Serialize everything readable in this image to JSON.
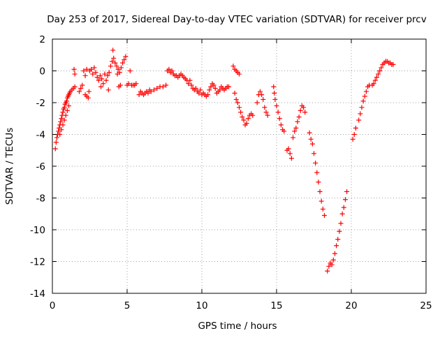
{
  "chart_data": {
    "type": "scatter",
    "title": "Day 253 of 2017, Sidereal Day-to-day VTEC variation (SDTVAR) for receiver prcv",
    "xlabel": "GPS time / hours",
    "ylabel": "SDTVAR / TECUs",
    "xlim": [
      0,
      25
    ],
    "ylim": [
      -14,
      2
    ],
    "xticks": [
      0,
      5,
      10,
      15,
      20,
      25
    ],
    "yticks": [
      -14,
      -12,
      -10,
      -8,
      -6,
      -4,
      -2,
      0,
      2
    ],
    "grid": true,
    "marker": "+",
    "color": "#ff0000",
    "series": [
      {
        "name": "SDTVAR",
        "points": [
          [
            0.2,
            -4.9
          ],
          [
            0.25,
            -4.5
          ],
          [
            0.3,
            -4.2
          ],
          [
            0.35,
            -4.0
          ],
          [
            0.4,
            -3.8
          ],
          [
            0.45,
            -3.6
          ],
          [
            0.5,
            -3.4
          ],
          [
            0.55,
            -3.2
          ],
          [
            0.6,
            -3.0
          ],
          [
            0.65,
            -2.8
          ],
          [
            0.7,
            -2.6
          ],
          [
            0.75,
            -2.4
          ],
          [
            0.8,
            -2.3
          ],
          [
            0.85,
            -2.1
          ],
          [
            0.9,
            -2.0
          ],
          [
            0.95,
            -1.9
          ],
          [
            1.0,
            -1.7
          ],
          [
            1.05,
            -1.6
          ],
          [
            1.1,
            -1.5
          ],
          [
            1.15,
            -1.4
          ],
          [
            1.2,
            -1.3
          ],
          [
            1.3,
            -1.2
          ],
          [
            1.4,
            -1.1
          ],
          [
            1.5,
            -1.0
          ],
          [
            0.5,
            -4.0
          ],
          [
            0.6,
            -3.7
          ],
          [
            0.7,
            -3.4
          ],
          [
            0.8,
            -3.1
          ],
          [
            0.9,
            -2.8
          ],
          [
            1.0,
            -2.5
          ],
          [
            1.1,
            -2.2
          ],
          [
            1.45,
            0.1
          ],
          [
            1.5,
            -0.2
          ],
          [
            1.8,
            -1.3
          ],
          [
            1.9,
            -1.1
          ],
          [
            2.0,
            -0.9
          ],
          [
            2.1,
            0.0
          ],
          [
            2.2,
            -0.3
          ],
          [
            2.3,
            0.1
          ],
          [
            2.2,
            -1.5
          ],
          [
            2.3,
            -1.6
          ],
          [
            2.4,
            -1.7
          ],
          [
            2.45,
            -1.3
          ],
          [
            2.5,
            0.0
          ],
          [
            2.6,
            0.1
          ],
          [
            2.7,
            -0.2
          ],
          [
            2.8,
            0.2
          ],
          [
            2.9,
            -0.1
          ],
          [
            3.0,
            -0.4
          ],
          [
            3.1,
            -0.6
          ],
          [
            3.2,
            -0.3
          ],
          [
            3.25,
            -1.0
          ],
          [
            3.3,
            -0.5
          ],
          [
            3.4,
            -0.8
          ],
          [
            3.5,
            -0.2
          ],
          [
            3.6,
            -0.6
          ],
          [
            3.7,
            -0.3
          ],
          [
            3.75,
            -1.2
          ],
          [
            3.8,
            -0.1
          ],
          [
            3.9,
            0.3
          ],
          [
            4.0,
            0.6
          ],
          [
            4.05,
            1.3
          ],
          [
            4.1,
            0.8
          ],
          [
            4.2,
            0.5
          ],
          [
            4.3,
            0.3
          ],
          [
            4.35,
            -0.2
          ],
          [
            4.4,
            0.1
          ],
          [
            4.45,
            -1.0
          ],
          [
            4.5,
            -0.1
          ],
          [
            4.55,
            -0.9
          ],
          [
            4.6,
            0.2
          ],
          [
            4.7,
            0.5
          ],
          [
            4.8,
            0.7
          ],
          [
            4.9,
            0.9
          ],
          [
            5.0,
            -0.9
          ],
          [
            5.1,
            -0.8
          ],
          [
            5.2,
            0.0
          ],
          [
            5.3,
            -0.9
          ],
          [
            5.4,
            -0.9
          ],
          [
            5.5,
            -0.9
          ],
          [
            5.6,
            -0.8
          ],
          [
            5.8,
            -1.5
          ],
          [
            5.9,
            -1.3
          ],
          [
            6.0,
            -1.4
          ],
          [
            6.1,
            -1.5
          ],
          [
            6.2,
            -1.4
          ],
          [
            6.3,
            -1.3
          ],
          [
            6.4,
            -1.4
          ],
          [
            6.5,
            -1.2
          ],
          [
            6.6,
            -1.3
          ],
          [
            6.8,
            -1.2
          ],
          [
            7.0,
            -1.1
          ],
          [
            7.2,
            -1.0
          ],
          [
            7.4,
            -1.0
          ],
          [
            7.6,
            -0.9
          ],
          [
            7.7,
            0.0
          ],
          [
            7.8,
            0.1
          ],
          [
            7.9,
            -0.1
          ],
          [
            8.0,
            0.0
          ],
          [
            8.1,
            -0.2
          ],
          [
            8.2,
            -0.3
          ],
          [
            8.3,
            -0.3
          ],
          [
            8.4,
            -0.4
          ],
          [
            8.5,
            -0.3
          ],
          [
            8.6,
            -0.2
          ],
          [
            8.7,
            -0.3
          ],
          [
            8.8,
            -0.4
          ],
          [
            8.9,
            -0.5
          ],
          [
            9.0,
            -0.6
          ],
          [
            9.1,
            -0.8
          ],
          [
            9.2,
            -0.6
          ],
          [
            9.3,
            -0.9
          ],
          [
            9.4,
            -1.1
          ],
          [
            9.5,
            -1.2
          ],
          [
            9.6,
            -1.1
          ],
          [
            9.7,
            -1.3
          ],
          [
            9.8,
            -1.4
          ],
          [
            9.9,
            -1.2
          ],
          [
            10.0,
            -1.5
          ],
          [
            10.1,
            -1.4
          ],
          [
            10.2,
            -1.5
          ],
          [
            10.3,
            -1.6
          ],
          [
            10.4,
            -1.5
          ],
          [
            10.5,
            -1.2
          ],
          [
            10.6,
            -1.0
          ],
          [
            10.7,
            -0.8
          ],
          [
            10.8,
            -0.9
          ],
          [
            10.9,
            -1.1
          ],
          [
            11.0,
            -1.4
          ],
          [
            11.1,
            -1.3
          ],
          [
            11.2,
            -1.2
          ],
          [
            11.3,
            -1.0
          ],
          [
            11.4,
            -1.1
          ],
          [
            11.5,
            -1.2
          ],
          [
            11.6,
            -1.1
          ],
          [
            11.7,
            -1.0
          ],
          [
            11.8,
            -1.0
          ],
          [
            12.1,
            0.3
          ],
          [
            12.2,
            0.1
          ],
          [
            12.3,
            0.0
          ],
          [
            12.4,
            -0.1
          ],
          [
            12.5,
            -0.2
          ],
          [
            12.2,
            -1.4
          ],
          [
            12.3,
            -1.8
          ],
          [
            12.4,
            -2.0
          ],
          [
            12.5,
            -2.3
          ],
          [
            12.6,
            -2.6
          ],
          [
            12.7,
            -2.9
          ],
          [
            12.8,
            -3.1
          ],
          [
            12.9,
            -3.4
          ],
          [
            13.0,
            -3.3
          ],
          [
            13.1,
            -3.0
          ],
          [
            13.2,
            -2.8
          ],
          [
            13.3,
            -2.7
          ],
          [
            13.4,
            -2.8
          ],
          [
            13.7,
            -2.0
          ],
          [
            13.8,
            -1.5
          ],
          [
            13.9,
            -1.3
          ],
          [
            14.0,
            -1.5
          ],
          [
            14.1,
            -1.8
          ],
          [
            14.2,
            -2.3
          ],
          [
            14.3,
            -2.6
          ],
          [
            14.4,
            -2.8
          ],
          [
            14.8,
            -1.0
          ],
          [
            14.85,
            -1.4
          ],
          [
            14.9,
            -1.8
          ],
          [
            15.0,
            -2.2
          ],
          [
            15.1,
            -2.6
          ],
          [
            15.2,
            -3.0
          ],
          [
            15.3,
            -3.4
          ],
          [
            15.4,
            -3.7
          ],
          [
            15.5,
            -3.8
          ],
          [
            15.7,
            -5.0
          ],
          [
            15.8,
            -4.9
          ],
          [
            15.9,
            -5.2
          ],
          [
            16.0,
            -5.5
          ],
          [
            16.1,
            -4.2
          ],
          [
            16.2,
            -3.8
          ],
          [
            16.3,
            -3.6
          ],
          [
            16.4,
            -3.2
          ],
          [
            16.5,
            -2.9
          ],
          [
            16.6,
            -2.5
          ],
          [
            16.7,
            -2.2
          ],
          [
            16.8,
            -2.3
          ],
          [
            16.9,
            -2.6
          ],
          [
            17.2,
            -3.9
          ],
          [
            17.3,
            -4.3
          ],
          [
            17.4,
            -4.6
          ],
          [
            17.5,
            -5.2
          ],
          [
            17.6,
            -5.8
          ],
          [
            17.7,
            -6.4
          ],
          [
            17.8,
            -7.0
          ],
          [
            17.9,
            -7.6
          ],
          [
            18.0,
            -8.2
          ],
          [
            18.1,
            -8.7
          ],
          [
            18.2,
            -9.1
          ],
          [
            18.4,
            -12.6
          ],
          [
            18.5,
            -12.3
          ],
          [
            18.6,
            -12.1
          ],
          [
            18.7,
            -12.2
          ],
          [
            18.8,
            -11.9
          ],
          [
            18.9,
            -11.5
          ],
          [
            19.0,
            -11.0
          ],
          [
            19.1,
            -10.6
          ],
          [
            19.2,
            -10.1
          ],
          [
            19.3,
            -9.6
          ],
          [
            19.4,
            -9.0
          ],
          [
            19.5,
            -8.6
          ],
          [
            19.6,
            -8.1
          ],
          [
            19.7,
            -7.6
          ],
          [
            20.1,
            -4.3
          ],
          [
            20.2,
            -4.0
          ],
          [
            20.3,
            -3.6
          ],
          [
            20.5,
            -3.1
          ],
          [
            20.6,
            -2.7
          ],
          [
            20.7,
            -2.3
          ],
          [
            20.8,
            -1.9
          ],
          [
            20.9,
            -1.6
          ],
          [
            21.0,
            -1.3
          ],
          [
            21.1,
            -1.0
          ],
          [
            21.2,
            -0.9
          ],
          [
            21.4,
            -0.9
          ],
          [
            21.5,
            -0.8
          ],
          [
            21.6,
            -0.6
          ],
          [
            21.7,
            -0.4
          ],
          [
            21.8,
            -0.2
          ],
          [
            21.9,
            0.0
          ],
          [
            22.0,
            0.2
          ],
          [
            22.1,
            0.4
          ],
          [
            22.2,
            0.5
          ],
          [
            22.3,
            0.6
          ],
          [
            22.4,
            0.6
          ],
          [
            22.5,
            0.5
          ],
          [
            22.6,
            0.5
          ],
          [
            22.7,
            0.4
          ],
          [
            22.8,
            0.4
          ]
        ]
      }
    ]
  }
}
